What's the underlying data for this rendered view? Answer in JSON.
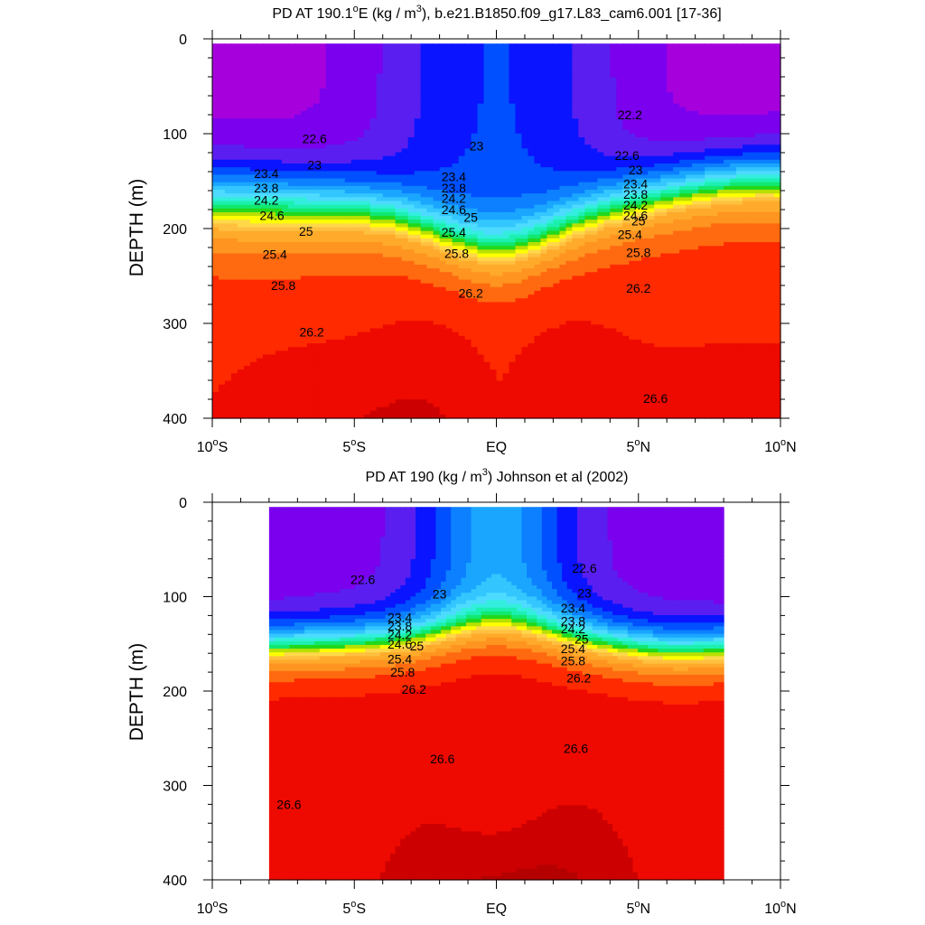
{
  "colors": {
    "fill_levels": [
      "#ff00ff",
      "#cc00ee",
      "#a600dd",
      "#7a00ee",
      "#5a1ff0",
      "#0a14ff",
      "#0050ff",
      "#0d80ff",
      "#1aa6ff",
      "#33c6ff",
      "#4ddbff",
      "#33eedd",
      "#1cf0b0",
      "#11e870",
      "#22d81c",
      "#b8e000",
      "#ffff00",
      "#ffd84a",
      "#ffc040",
      "#ffaa2a",
      "#ff9420",
      "#ff6a10",
      "#ff2a00",
      "#ee0a00",
      "#cc0000",
      "#b50000"
    ],
    "fill_thresholds": [
      21.2,
      21.4,
      21.6,
      21.8,
      22.0,
      22.2,
      22.4,
      22.6,
      22.8,
      23.0,
      23.2,
      23.4,
      23.6,
      23.8,
      24.0,
      24.2,
      24.4,
      24.6,
      24.8,
      25.2,
      25.6,
      26.0,
      26.4,
      26.8,
      27.0
    ],
    "contour_line": "#000000",
    "no_data": "#ffffff"
  },
  "chart_data": [
    {
      "type": "heatmap",
      "title_main": "PD AT 190.1",
      "title_sup_deg": "o",
      "title_rest": "E (kg / m",
      "title_sup_3": "3",
      "title_end": "), b.e21.B1850.f09_g17.L83_cam6.001 [17-36]",
      "ylabel": "DEPTH (m)",
      "xlim": [
        -10,
        10
      ],
      "ylim": [
        400,
        0
      ],
      "yticks": [
        0,
        100,
        200,
        300,
        400
      ],
      "xtick_labels": [
        {
          "value": -10,
          "num": "10",
          "deg": "o",
          "hemi": "S"
        },
        {
          "value": -5,
          "num": "5",
          "deg": "o",
          "hemi": "S"
        },
        {
          "value": 0,
          "num": "EQ",
          "deg": "",
          "hemi": ""
        },
        {
          "value": 5,
          "num": "5",
          "deg": "o",
          "hemi": "N"
        },
        {
          "value": 10,
          "num": "10",
          "deg": "o",
          "hemi": "N"
        }
      ],
      "data_x_range": [
        -10,
        10
      ],
      "surface_depth": 5,
      "contour_interval": 0.2,
      "contour_labels": [
        {
          "text": "22.2",
          "x": 4.7,
          "depth": 80
        },
        {
          "text": "22.6",
          "x": -6.4,
          "depth": 105
        },
        {
          "text": "22.6",
          "x": 4.6,
          "depth": 123
        },
        {
          "text": "23",
          "x": -6.4,
          "depth": 133
        },
        {
          "text": "23",
          "x": -0.7,
          "depth": 113
        },
        {
          "text": "23",
          "x": 4.9,
          "depth": 138
        },
        {
          "text": "23.4",
          "x": -8.1,
          "depth": 142
        },
        {
          "text": "23.4",
          "x": -1.5,
          "depth": 145
        },
        {
          "text": "23.4",
          "x": 4.9,
          "depth": 153
        },
        {
          "text": "23.8",
          "x": -8.1,
          "depth": 157
        },
        {
          "text": "23.8",
          "x": -1.5,
          "depth": 157
        },
        {
          "text": "23.8",
          "x": 4.9,
          "depth": 164
        },
        {
          "text": "24.2",
          "x": -8.1,
          "depth": 170
        },
        {
          "text": "24.2",
          "x": -1.5,
          "depth": 168
        },
        {
          "text": "24.2",
          "x": 4.9,
          "depth": 175
        },
        {
          "text": "24.6",
          "x": -7.9,
          "depth": 186
        },
        {
          "text": "24.6",
          "x": -1.5,
          "depth": 180
        },
        {
          "text": "24.6",
          "x": 4.9,
          "depth": 186
        },
        {
          "text": "25",
          "x": -6.7,
          "depth": 203
        },
        {
          "text": "25",
          "x": -0.9,
          "depth": 188
        },
        {
          "text": "25",
          "x": 5.0,
          "depth": 192
        },
        {
          "text": "25.4",
          "x": -7.8,
          "depth": 227
        },
        {
          "text": "25.4",
          "x": -1.5,
          "depth": 204
        },
        {
          "text": "25.4",
          "x": 4.7,
          "depth": 206
        },
        {
          "text": "25.8",
          "x": -7.5,
          "depth": 260
        },
        {
          "text": "25.8",
          "x": -1.4,
          "depth": 226
        },
        {
          "text": "25.8",
          "x": 5.0,
          "depth": 225
        },
        {
          "text": "26.2",
          "x": -6.5,
          "depth": 309
        },
        {
          "text": "26.2",
          "x": -0.9,
          "depth": 268
        },
        {
          "text": "26.2",
          "x": 5.0,
          "depth": 263
        },
        {
          "text": "26.6",
          "x": 5.6,
          "depth": 379
        }
      ]
    },
    {
      "type": "heatmap",
      "title_main": "PD AT 190 (kg / m",
      "title_sup_3": "3",
      "title_end": ") Johnson et al (2002)",
      "ylabel": "DEPTH (m)",
      "xlim": [
        -10,
        10
      ],
      "ylim": [
        400,
        0
      ],
      "yticks": [
        0,
        100,
        200,
        300,
        400
      ],
      "xtick_labels": [
        {
          "value": -10,
          "num": "10",
          "deg": "o",
          "hemi": "S"
        },
        {
          "value": -5,
          "num": "5",
          "deg": "o",
          "hemi": "S"
        },
        {
          "value": 0,
          "num": "EQ",
          "deg": "",
          "hemi": ""
        },
        {
          "value": 5,
          "num": "5",
          "deg": "o",
          "hemi": "N"
        },
        {
          "value": 10,
          "num": "10",
          "deg": "o",
          "hemi": "N"
        }
      ],
      "data_x_range": [
        -8,
        8
      ],
      "surface_depth": 5,
      "contour_interval": 0.2,
      "contour_labels": [
        {
          "text": "22.6",
          "x": -4.7,
          "depth": 82
        },
        {
          "text": "22.6",
          "x": 3.1,
          "depth": 70
        },
        {
          "text": "23",
          "x": -2.0,
          "depth": 97
        },
        {
          "text": "23",
          "x": 3.1,
          "depth": 96
        },
        {
          "text": "23.4",
          "x": -3.4,
          "depth": 122
        },
        {
          "text": "23.4",
          "x": 2.7,
          "depth": 112
        },
        {
          "text": "23.8",
          "x": -3.4,
          "depth": 131
        },
        {
          "text": "23.8",
          "x": 2.7,
          "depth": 126
        },
        {
          "text": "24.2",
          "x": -3.4,
          "depth": 140
        },
        {
          "text": "24.2",
          "x": 2.7,
          "depth": 134
        },
        {
          "text": "24.6",
          "x": -3.4,
          "depth": 150
        },
        {
          "text": "25",
          "x": -2.8,
          "depth": 152
        },
        {
          "text": "25",
          "x": 3.0,
          "depth": 145
        },
        {
          "text": "25.4",
          "x": 2.7,
          "depth": 155
        },
        {
          "text": "25.4",
          "x": -3.4,
          "depth": 166
        },
        {
          "text": "25.8",
          "x": -3.3,
          "depth": 180
        },
        {
          "text": "25.8",
          "x": 2.7,
          "depth": 168
        },
        {
          "text": "26.2",
          "x": -2.9,
          "depth": 198
        },
        {
          "text": "26.2",
          "x": 2.9,
          "depth": 186
        },
        {
          "text": "26.6",
          "x": -1.9,
          "depth": 272
        },
        {
          "text": "26.6",
          "x": 2.8,
          "depth": 261
        },
        {
          "text": "26.6",
          "x": -7.3,
          "depth": 320
        }
      ]
    }
  ]
}
